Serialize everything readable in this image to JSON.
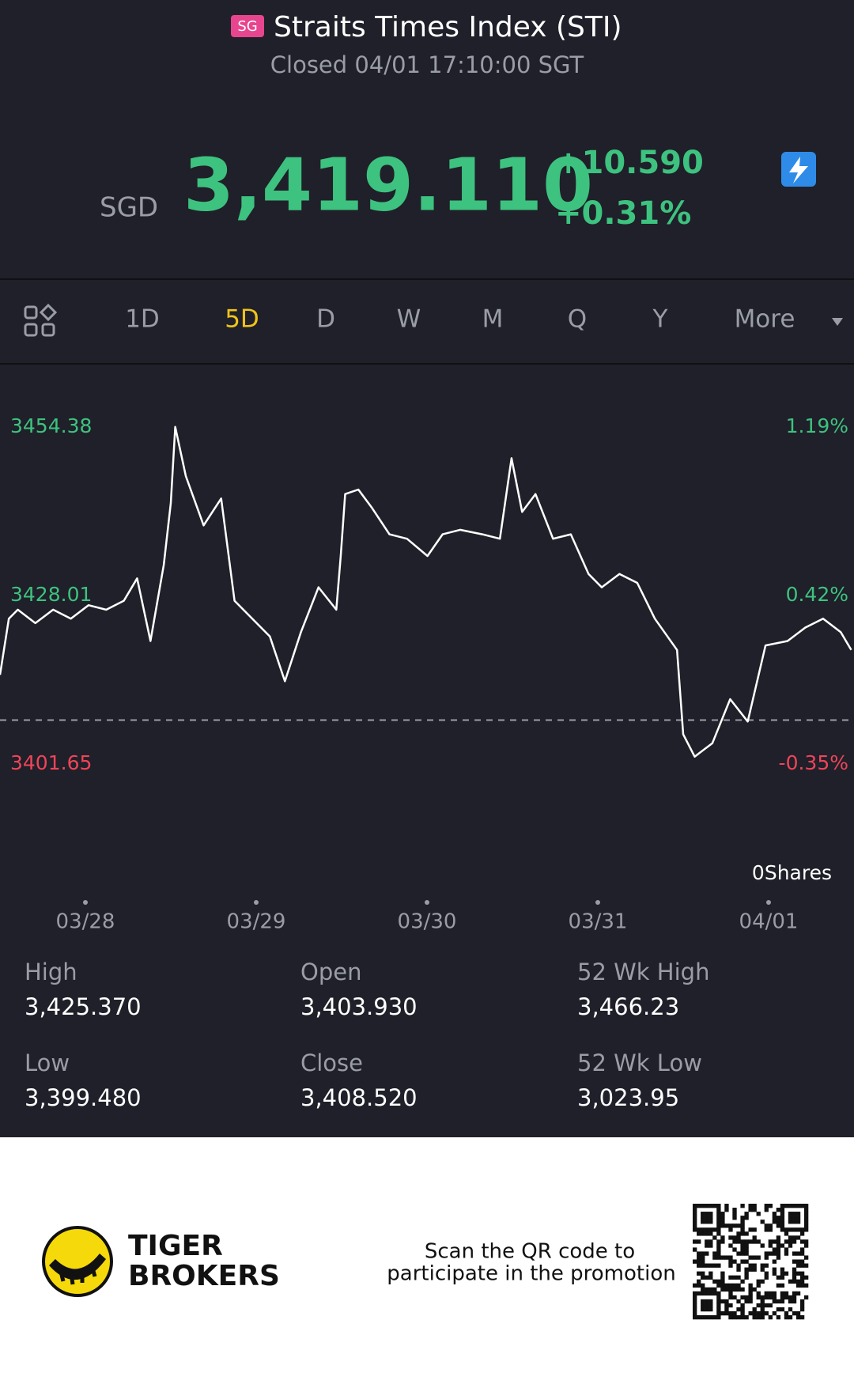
{
  "header": {
    "flag": "SG",
    "title": "Straits Times Index (STI)",
    "subtitle": "Closed 04/01 17:10:00 SGT"
  },
  "quote": {
    "currency": "SGD",
    "price": "3,419.110",
    "change": "+10.590",
    "change_pct": "+0.31%"
  },
  "tabs": [
    "1D",
    "5D",
    "D",
    "W",
    "M",
    "Q",
    "Y",
    "More"
  ],
  "active_tab": "5D",
  "chart_data": {
    "type": "line",
    "ylim": [
      3401.65,
      3454.38
    ],
    "yticks": [
      3401.65,
      3428.01,
      3454.38
    ],
    "y2lim": [
      -0.35,
      1.19
    ],
    "y2ticks": [
      {
        "value": -0.35,
        "label": "-0.35%"
      },
      {
        "value": 0.42,
        "label": "0.42%"
      },
      {
        "value": 1.19,
        "label": "1.19%"
      }
    ],
    "xlim": [
      0,
      5
    ],
    "xticks": [
      {
        "value": 0.5,
        "label": "03/28"
      },
      {
        "value": 1.5,
        "label": "03/29"
      },
      {
        "value": 2.5,
        "label": "03/30"
      },
      {
        "value": 3.5,
        "label": "03/31"
      },
      {
        "value": 4.5,
        "label": "04/01"
      }
    ],
    "reference_line": 3408.52,
    "annotation": "0Shares",
    "x": [
      0,
      0.052,
      0.104,
      0.207,
      0.311,
      0.415,
      0.518,
      0.622,
      0.725,
      0.803,
      0.881,
      0.959,
      1.0,
      1.026,
      1.088,
      1.192,
      1.295,
      1.373,
      1.477,
      1.58,
      1.668,
      1.762,
      1.865,
      1.969,
      1.995,
      2.021,
      2.098,
      2.176,
      2.28,
      2.383,
      2.503,
      2.591,
      2.694,
      2.824,
      2.927,
      2.995,
      3.057,
      3.135,
      3.238,
      3.342,
      3.446,
      3.523,
      3.627,
      3.731,
      3.834,
      3.964,
      4.0,
      4.067,
      4.171,
      4.275,
      4.378,
      4.482,
      4.611,
      4.715,
      4.819,
      4.922,
      4.984
    ],
    "series": [
      {
        "color": "#ffffff",
        "values": [
          3415.6,
          3424.4,
          3425.8,
          3423.7,
          3425.8,
          3424.4,
          3426.5,
          3425.8,
          3427.2,
          3430.7,
          3420.9,
          3432.8,
          3442.5,
          3454.4,
          3446.7,
          3439.0,
          3443.2,
          3427.2,
          3424.4,
          3421.6,
          3414.6,
          3422.3,
          3429.3,
          3425.8,
          3434.2,
          3443.9,
          3444.6,
          3441.8,
          3437.6,
          3436.9,
          3434.2,
          3437.6,
          3438.3,
          3437.6,
          3436.9,
          3449.5,
          3441.1,
          3443.9,
          3436.9,
          3437.6,
          3431.4,
          3429.3,
          3431.4,
          3430.0,
          3424.4,
          3419.5,
          3406.3,
          3402.8,
          3404.9,
          3411.8,
          3408.3,
          3420.2,
          3420.9,
          3423.0,
          3424.4,
          3422.3,
          3419.5
        ]
      }
    ]
  },
  "stats": [
    {
      "label": "High",
      "value": "3,425.370"
    },
    {
      "label": "Open",
      "value": "3,403.930"
    },
    {
      "label": "52 Wk High",
      "value": "3,466.23"
    },
    {
      "label": "Low",
      "value": "3,399.480"
    },
    {
      "label": "Close",
      "value": "3,408.520"
    },
    {
      "label": "52 Wk Low",
      "value": "3,023.95"
    }
  ],
  "footer": {
    "brand_line1": "TIGER",
    "brand_line2": "BROKERS",
    "promo_line1": "Scan the QR code to",
    "promo_line2": "participate in the promotion"
  }
}
